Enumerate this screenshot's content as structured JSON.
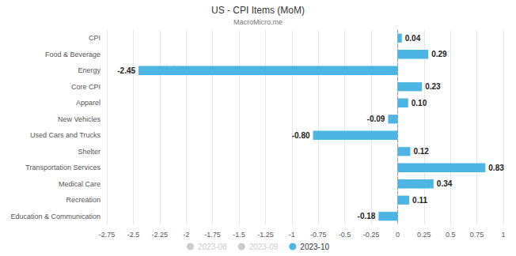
{
  "chart_data": {
    "type": "bar",
    "orientation": "horizontal",
    "title": "US - CPI Items (MoM)",
    "subtitle": "MacroMicro.me",
    "annotations": [
      "MacroMicro"
    ],
    "categories": [
      "CPI",
      "Food & Beverage",
      "Energy",
      "Core CPI",
      "Apparel",
      "New Vehicles",
      "Used Cars and Trucks",
      "Shelter",
      "Transportation Services",
      "Medical Care",
      "Recreation",
      "Education & Communication"
    ],
    "series": [
      {
        "name": "2023-08",
        "color": "#cccccc",
        "values": [
          null,
          null,
          null,
          null,
          null,
          null,
          null,
          null,
          null,
          null,
          null,
          null
        ]
      },
      {
        "name": "2023-09",
        "color": "#cccccc",
        "values": [
          null,
          null,
          null,
          null,
          null,
          null,
          null,
          null,
          null,
          null,
          null,
          null
        ]
      },
      {
        "name": "2023-10",
        "color": "#4db5e3",
        "values": [
          0.04,
          0.29,
          -2.45,
          0.23,
          0.1,
          -0.09,
          -0.8,
          0.12,
          0.83,
          0.34,
          0.11,
          -0.18
        ],
        "value_labels": [
          "0.04",
          "0.29",
          "-2.45",
          "0.23",
          "0.10",
          "-0.09",
          "-0.80",
          "0.12",
          "0.83",
          "0.34",
          "0.11",
          "-0.18"
        ]
      }
    ],
    "xlim": [
      -2.75,
      1
    ],
    "xticks": [
      -2.75,
      -2.5,
      -2.25,
      -2,
      -1.75,
      -1.5,
      -1.25,
      -1,
      -0.75,
      -0.5,
      -0.25,
      0,
      0.25,
      0.5,
      0.75,
      1
    ],
    "grid": true,
    "data_labels": true,
    "legend": "bottom"
  }
}
